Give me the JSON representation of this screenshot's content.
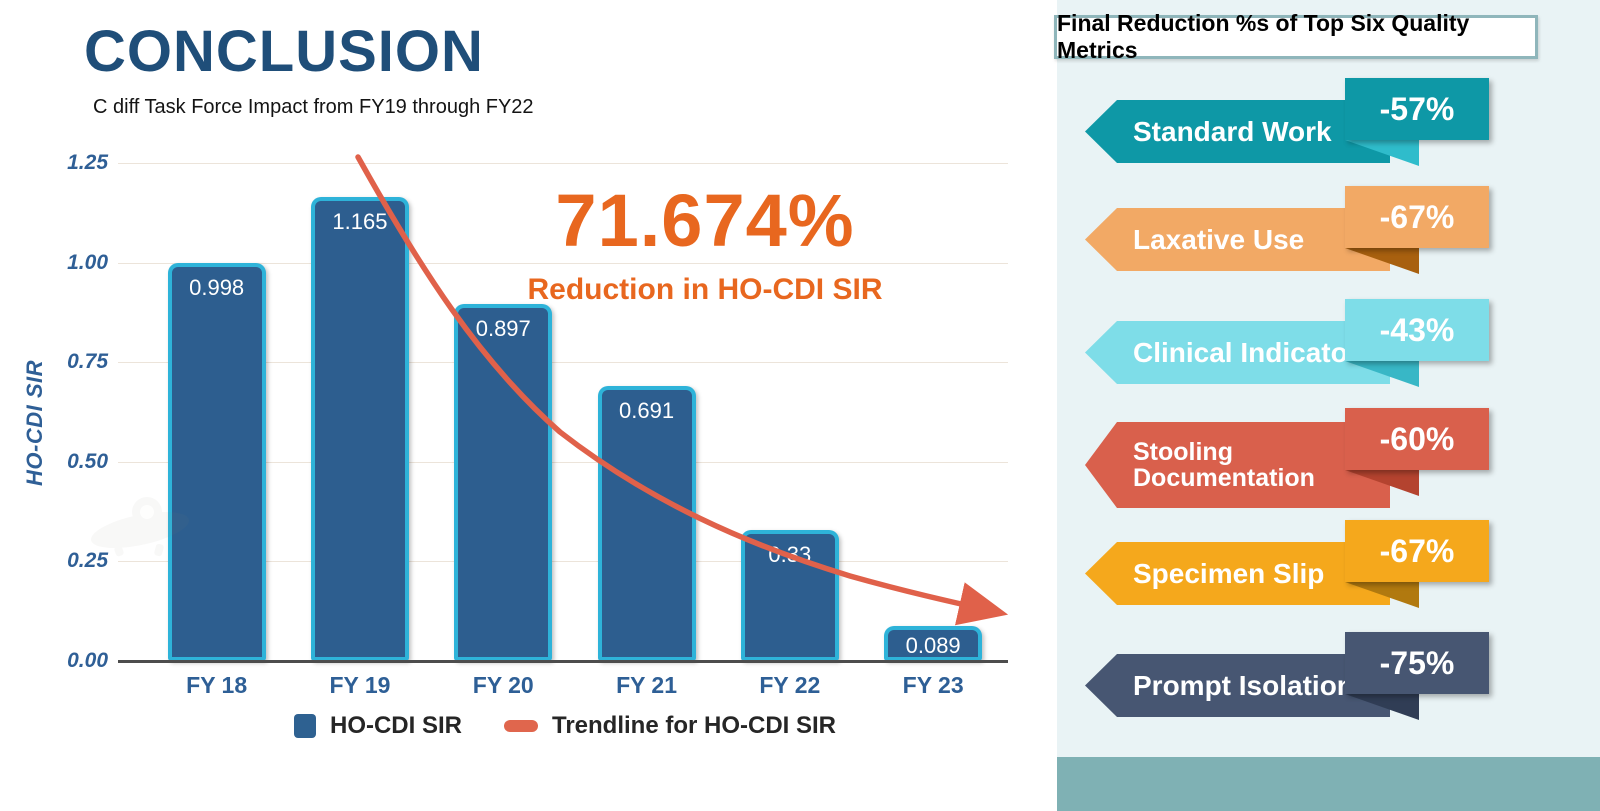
{
  "title": "CONCLUSION",
  "subtitle": "C diff Task Force Impact from FY19 through FY22",
  "highlight": {
    "value": "71.674%",
    "caption": "Reduction in HO-CDI SIR",
    "color": "#e8671f"
  },
  "chart_data": {
    "type": "bar",
    "categories": [
      "FY 18",
      "FY 19",
      "FY 20",
      "FY 21",
      "FY 22",
      "FY 23"
    ],
    "values": [
      0.998,
      1.165,
      0.897,
      0.691,
      0.33,
      0.089
    ],
    "bar_labels": [
      "0.998",
      "1.165",
      "0.897",
      "0.691",
      "0.33",
      "0.089"
    ],
    "title": "",
    "xlabel": "",
    "ylabel": "HO-CDI SIR",
    "ylim": [
      0,
      1.25
    ],
    "yticks": [
      {
        "label": "0.00",
        "value": 0.0
      },
      {
        "label": "0.25",
        "value": 0.25
      },
      {
        "label": "0.50",
        "value": 0.5
      },
      {
        "label": "0.75",
        "value": 0.75
      },
      {
        "label": "1.00",
        "value": 1.0
      },
      {
        "label": "1.25",
        "value": 1.25
      }
    ],
    "grid": true,
    "bar_color": "#2d5e8f",
    "bar_border_color": "#2eb3d9",
    "trendline_color": "#e0614a",
    "legend_position": "bottom",
    "legend": [
      {
        "label": "HO-CDI SIR",
        "marker": "square",
        "color": "#2e6191"
      },
      {
        "label": "Trendline for HO-CDI SIR",
        "marker": "dash",
        "color": "#e0664d"
      }
    ],
    "series": [
      {
        "name": "HO-CDI SIR",
        "type": "bar",
        "values": [
          0.998,
          1.165,
          0.897,
          0.691,
          0.33,
          0.089
        ]
      },
      {
        "name": "Trendline for HO-CDI SIR",
        "type": "trendline",
        "shape": "decaying curve with arrow from above FY19 down to right of FY23"
      }
    ]
  },
  "panel": {
    "header": "Final Reduction %s of Top Six Quality Metrics",
    "background": "#e9f3f5",
    "footer_color": "#7fb1b4",
    "metrics": [
      {
        "label": "Standard Work",
        "pct": "-57%",
        "color": "#0e98a6",
        "fold": "#2fbccb"
      },
      {
        "label": "Laxative Use",
        "pct": "-67%",
        "color": "#f2a965",
        "fold": "#a8600f"
      },
      {
        "label": "Clinical Indicators",
        "pct": "-43%",
        "color": "#7edde8",
        "fold": "#38b7c6"
      },
      {
        "label": "Stooling Documentation",
        "pct": "-60%",
        "color": "#d9604c",
        "fold": "#b4432f"
      },
      {
        "label": "Specimen Slip",
        "pct": "-67%",
        "color": "#f5a81c",
        "fold": "#b1790f"
      },
      {
        "label": "Prompt Isolation",
        "pct": "-75%",
        "color": "#475672",
        "fold": "#303d55"
      }
    ]
  },
  "watermark": {
    "name": "ufo-icon",
    "color": "#b3aca0"
  }
}
